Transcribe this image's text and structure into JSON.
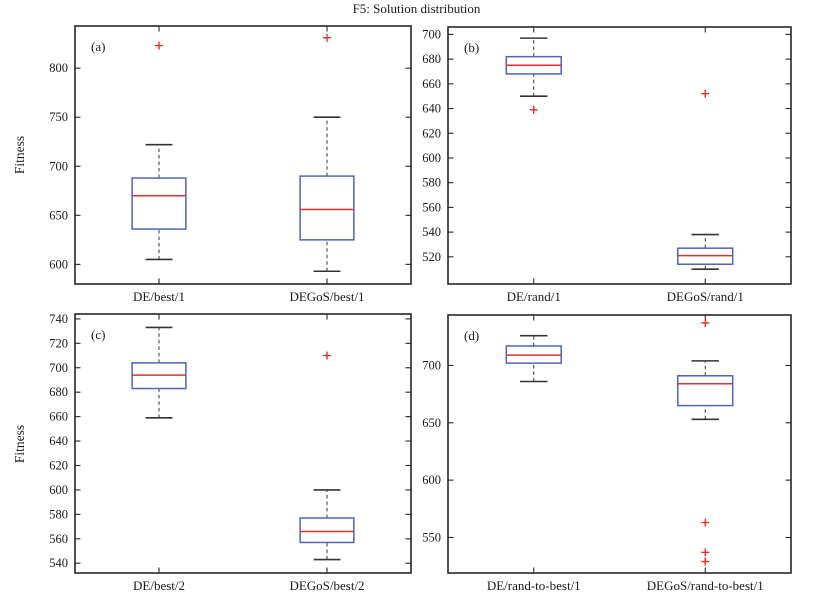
{
  "figure": {
    "title": "F5: Solution distribution",
    "background": "#ffffff",
    "colors": {
      "box": "#4f63c0",
      "median": "#e0312b",
      "flier": "#e0312b",
      "whisker": "#333333",
      "cap": "#333333",
      "axis": "#262626",
      "text": "#1a1a1a"
    }
  },
  "chart_data": [
    {
      "type": "box",
      "panel_label": "(a)",
      "ylabel": "Fitness",
      "categories": [
        "DE/best/1",
        "DEGoS/best/1"
      ],
      "ylim": [
        580,
        843
      ],
      "yticks": [
        600,
        650,
        700,
        750,
        800
      ],
      "series": [
        {
          "name": "DE/best/1",
          "whislo": 605,
          "q1": 636,
          "med": 670,
          "q3": 688,
          "whishi": 722,
          "fliers": [
            823
          ]
        },
        {
          "name": "DEGoS/best/1",
          "whislo": 593,
          "q1": 625,
          "med": 656,
          "q3": 690,
          "whishi": 750,
          "fliers": [
            831
          ]
        }
      ]
    },
    {
      "type": "box",
      "panel_label": "(b)",
      "ylabel": "",
      "categories": [
        "DE/rand/1",
        "DEGoS/rand/1"
      ],
      "ylim": [
        498,
        706
      ],
      "yticks": [
        520,
        540,
        560,
        580,
        600,
        620,
        640,
        660,
        680,
        700
      ],
      "series": [
        {
          "name": "DE/rand/1",
          "whislo": 650,
          "q1": 668,
          "med": 675,
          "q3": 682,
          "whishi": 697,
          "fliers": [
            639
          ]
        },
        {
          "name": "DEGoS/rand/1",
          "whislo": 510,
          "q1": 514,
          "med": 521,
          "q3": 527,
          "whishi": 538,
          "fliers": [
            652
          ]
        }
      ]
    },
    {
      "type": "box",
      "panel_label": "(c)",
      "ylabel": "Fitness",
      "categories": [
        "DE/best/2",
        "DEGoS/best/2"
      ],
      "ylim": [
        532,
        744
      ],
      "yticks": [
        540,
        560,
        580,
        600,
        620,
        640,
        660,
        680,
        700,
        720,
        740
      ],
      "series": [
        {
          "name": "DE/best/2",
          "whislo": 659,
          "q1": 683,
          "med": 694,
          "q3": 704,
          "whishi": 733,
          "fliers": []
        },
        {
          "name": "DEGoS/best/2",
          "whislo": 543,
          "q1": 557,
          "med": 566,
          "q3": 577,
          "whishi": 600,
          "fliers": [
            710
          ]
        }
      ]
    },
    {
      "type": "box",
      "panel_label": "(d)",
      "ylabel": "",
      "categories": [
        "DE/rand-to-best/1",
        "DEGoS/rand-to-best/1"
      ],
      "ylim": [
        519,
        744
      ],
      "yticks": [
        550,
        600,
        650,
        700
      ],
      "series": [
        {
          "name": "DE/rand-to-best/1",
          "whislo": 686,
          "q1": 702,
          "med": 709,
          "q3": 717,
          "whishi": 726,
          "fliers": []
        },
        {
          "name": "DEGoS/rand-to-best/1",
          "whislo": 653,
          "q1": 665,
          "med": 684,
          "q3": 691,
          "whishi": 704,
          "fliers": [
            737,
            563,
            537,
            529
          ]
        }
      ]
    }
  ]
}
